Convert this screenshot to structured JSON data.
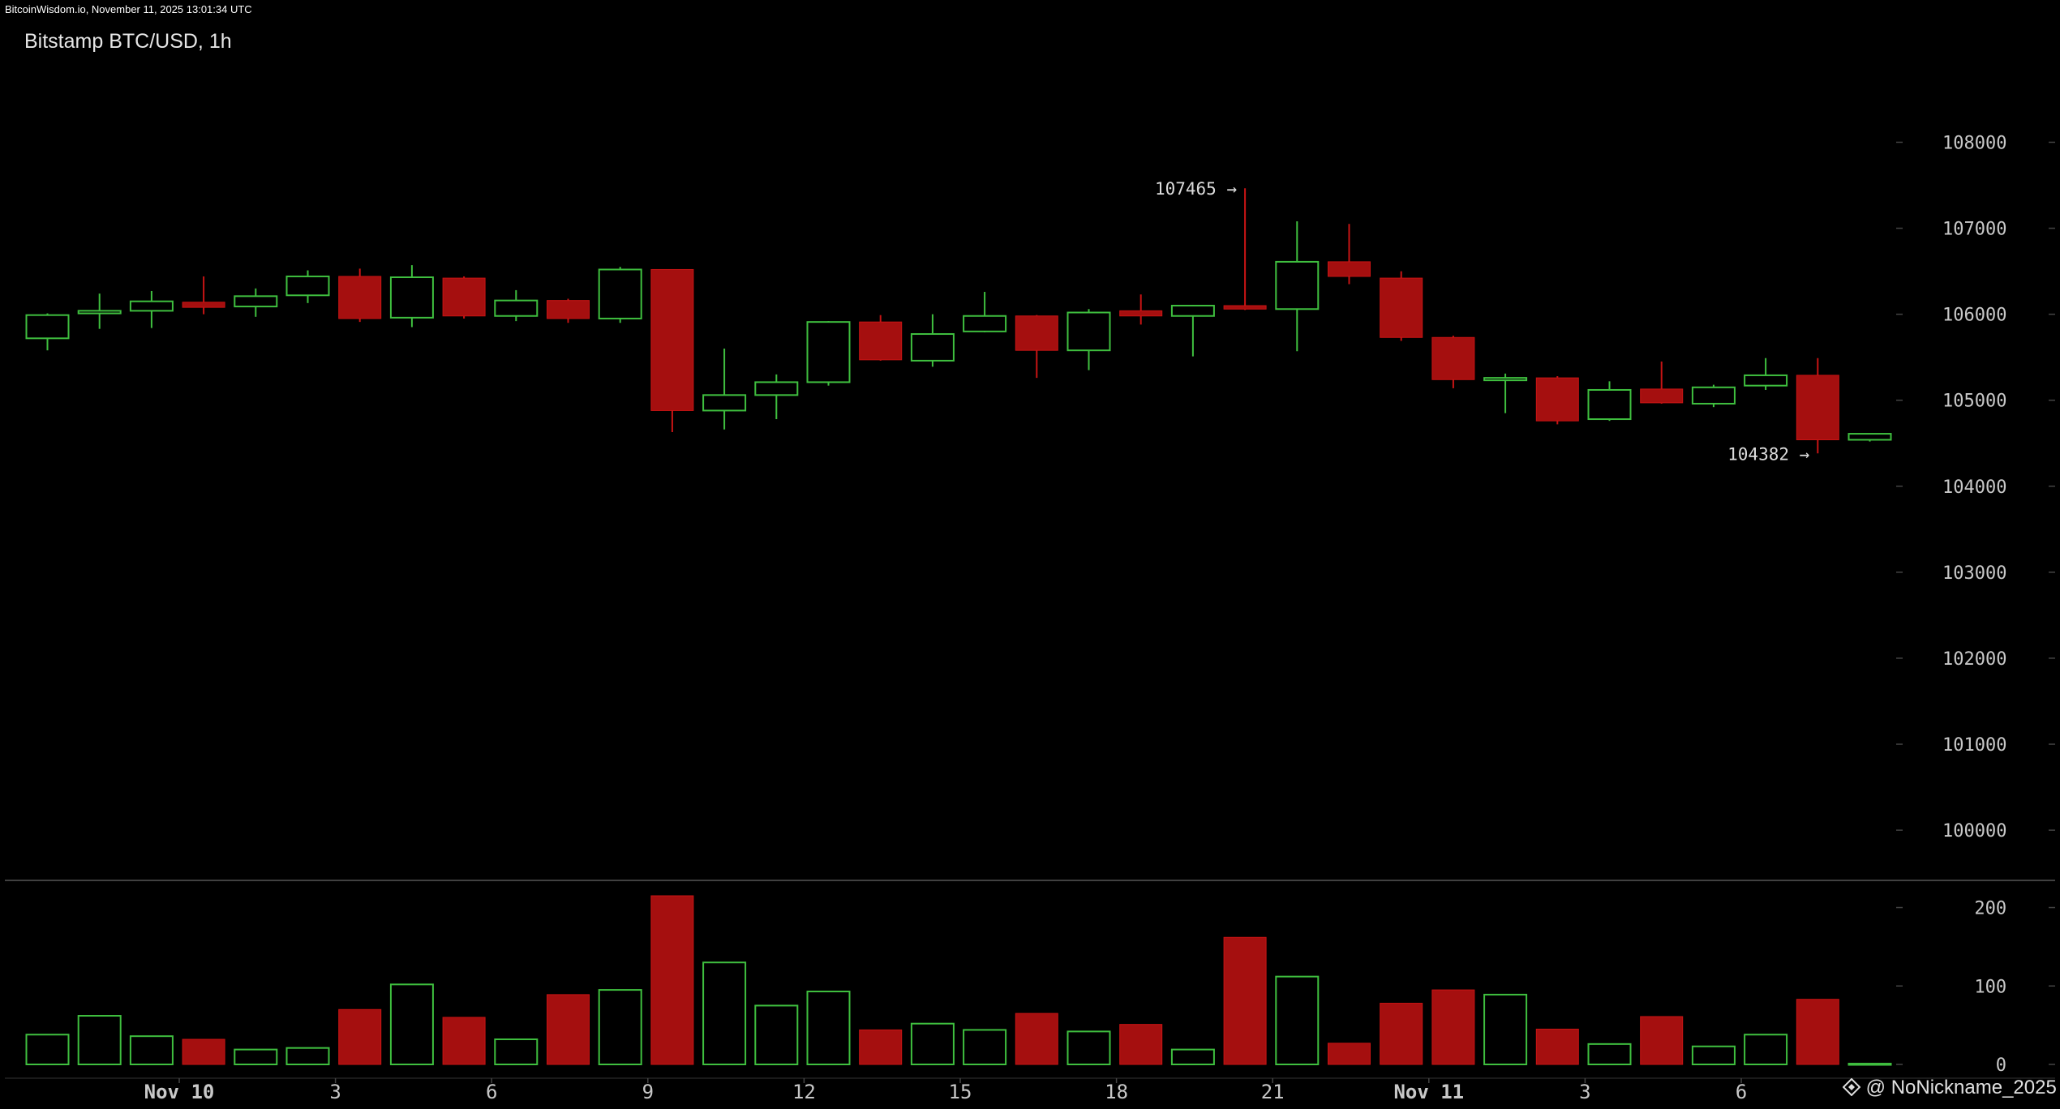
{
  "header": {
    "source_text": "BitcoinWisdom.io, November 11, 2025 13:01:34 UTC"
  },
  "watermark": {
    "text": "@ NoNickname_2025",
    "icon": "diamond-logo-icon"
  },
  "colors": {
    "up": "#3fbf3f",
    "down": "#a50f0f",
    "down_wick": "#c81414",
    "background": "#000000",
    "grid_tick": "#444444"
  },
  "chart_data": {
    "type": "candlestick",
    "title": "Bitstamp BTC/USD, 1h",
    "price_axis": {
      "ticks": [
        108000,
        107000,
        106000,
        105000,
        104000,
        103000,
        102000,
        101000,
        100000
      ],
      "ylim": [
        99850,
        108900
      ]
    },
    "volume_axis": {
      "ticks": [
        200,
        100,
        0
      ],
      "ylim": [
        0,
        215
      ]
    },
    "x_ticks": [
      {
        "label": "Nov 10",
        "index": 3,
        "bold": true
      },
      {
        "label": "3",
        "index": 6
      },
      {
        "label": "6",
        "index": 9
      },
      {
        "label": "9",
        "index": 12
      },
      {
        "label": "12",
        "index": 15
      },
      {
        "label": "15",
        "index": 18
      },
      {
        "label": "18",
        "index": 21
      },
      {
        "label": "21",
        "index": 24
      },
      {
        "label": "Nov 11",
        "index": 27,
        "bold": true
      },
      {
        "label": "3",
        "index": 30
      },
      {
        "label": "6",
        "index": 33
      }
    ],
    "annotations": [
      {
        "text": "107465 →",
        "index": 23,
        "value": 107465
      },
      {
        "text": "104382 →",
        "index": 34,
        "value": 104382
      }
    ],
    "candles": [
      {
        "o": 105720,
        "h": 106010,
        "l": 105580,
        "c": 105990,
        "v": 38
      },
      {
        "o": 106010,
        "h": 106240,
        "l": 105830,
        "c": 106040,
        "v": 62
      },
      {
        "o": 106040,
        "h": 106270,
        "l": 105840,
        "c": 106150,
        "v": 36
      },
      {
        "o": 106140,
        "h": 106440,
        "l": 106000,
        "c": 106080,
        "v": 32
      },
      {
        "o": 106090,
        "h": 106300,
        "l": 105970,
        "c": 106210,
        "v": 19
      },
      {
        "o": 106220,
        "h": 106510,
        "l": 106130,
        "c": 106440,
        "v": 21
      },
      {
        "o": 106440,
        "h": 106530,
        "l": 105910,
        "c": 105950,
        "v": 70
      },
      {
        "o": 105960,
        "h": 106570,
        "l": 105850,
        "c": 106430,
        "v": 102
      },
      {
        "o": 106420,
        "h": 106440,
        "l": 105950,
        "c": 105980,
        "v": 60
      },
      {
        "o": 105980,
        "h": 106280,
        "l": 105920,
        "c": 106160,
        "v": 32
      },
      {
        "o": 106160,
        "h": 106180,
        "l": 105900,
        "c": 105950,
        "v": 89
      },
      {
        "o": 105950,
        "h": 106550,
        "l": 105900,
        "c": 106520,
        "v": 95
      },
      {
        "o": 106520,
        "h": 106520,
        "l": 104630,
        "c": 104880,
        "v": 215
      },
      {
        "o": 104880,
        "h": 105600,
        "l": 104660,
        "c": 105060,
        "v": 130
      },
      {
        "o": 105060,
        "h": 105300,
        "l": 104780,
        "c": 105210,
        "v": 75
      },
      {
        "o": 105210,
        "h": 105920,
        "l": 105170,
        "c": 105910,
        "v": 93
      },
      {
        "o": 105910,
        "h": 105990,
        "l": 105460,
        "c": 105470,
        "v": 44
      },
      {
        "o": 105460,
        "h": 106000,
        "l": 105390,
        "c": 105770,
        "v": 52
      },
      {
        "o": 105800,
        "h": 106260,
        "l": 105790,
        "c": 105980,
        "v": 44
      },
      {
        "o": 105980,
        "h": 105990,
        "l": 105260,
        "c": 105580,
        "v": 65
      },
      {
        "o": 105580,
        "h": 106060,
        "l": 105350,
        "c": 106020,
        "v": 42
      },
      {
        "o": 106040,
        "h": 106230,
        "l": 105880,
        "c": 105980,
        "v": 51
      },
      {
        "o": 105980,
        "h": 106110,
        "l": 105510,
        "c": 106100,
        "v": 19
      },
      {
        "o": 106100,
        "h": 107465,
        "l": 106050,
        "c": 106060,
        "v": 162
      },
      {
        "o": 106060,
        "h": 107080,
        "l": 105570,
        "c": 106610,
        "v": 112
      },
      {
        "o": 106610,
        "h": 107050,
        "l": 106350,
        "c": 106440,
        "v": 27
      },
      {
        "o": 106420,
        "h": 106500,
        "l": 105690,
        "c": 105730,
        "v": 78
      },
      {
        "o": 105730,
        "h": 105750,
        "l": 105140,
        "c": 105240,
        "v": 95
      },
      {
        "o": 105240,
        "h": 105310,
        "l": 104850,
        "c": 105260,
        "v": 89
      },
      {
        "o": 105260,
        "h": 105280,
        "l": 104720,
        "c": 104760,
        "v": 45
      },
      {
        "o": 104780,
        "h": 105220,
        "l": 104760,
        "c": 105120,
        "v": 26
      },
      {
        "o": 105130,
        "h": 105450,
        "l": 104960,
        "c": 104970,
        "v": 61
      },
      {
        "o": 104960,
        "h": 105180,
        "l": 104920,
        "c": 105150,
        "v": 23
      },
      {
        "o": 105170,
        "h": 105490,
        "l": 105120,
        "c": 105290,
        "v": 38
      },
      {
        "o": 105290,
        "h": 105490,
        "l": 104382,
        "c": 104540,
        "v": 83
      },
      {
        "o": 104540,
        "h": 104610,
        "l": 104520,
        "c": 104610,
        "v": 1
      }
    ]
  }
}
